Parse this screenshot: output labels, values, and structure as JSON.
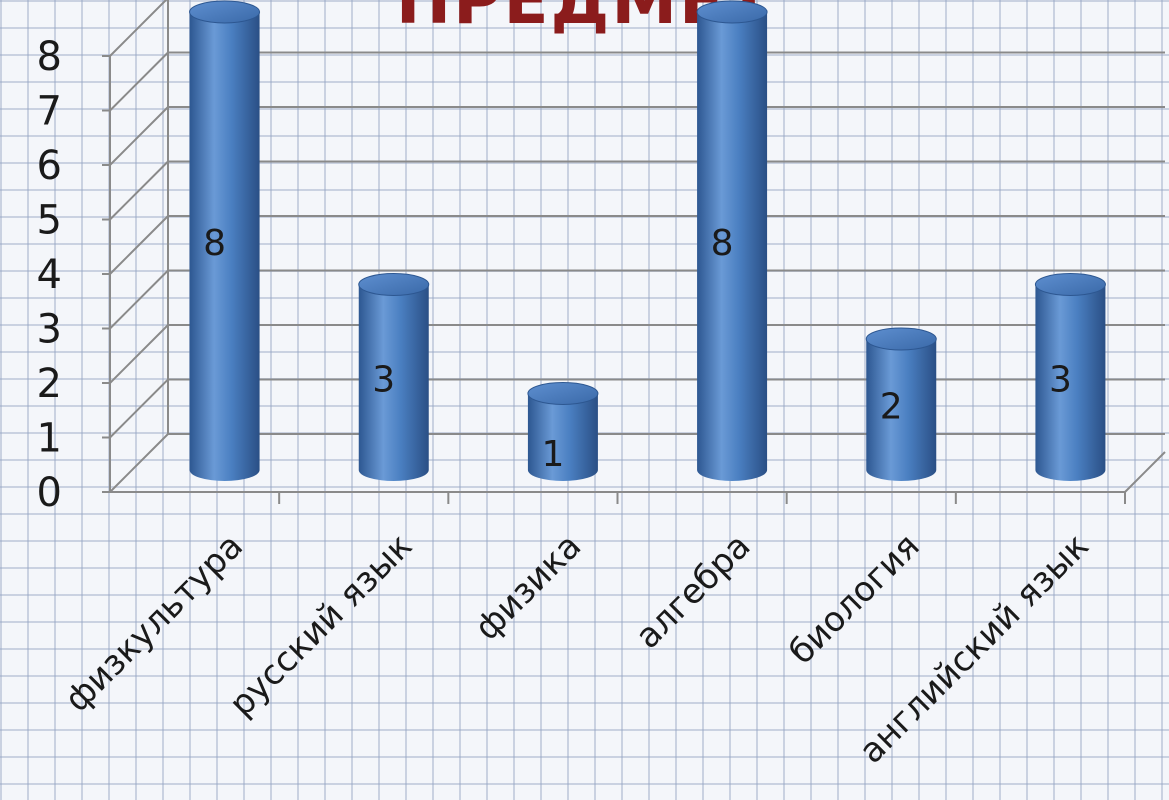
{
  "title": "ПРЕДМЕТ",
  "chart_data": {
    "type": "bar",
    "title": "ПРЕДМЕТ",
    "categories": [
      "физкультура",
      "русский язык",
      "физика",
      "алгебра",
      "биология",
      "английский язык"
    ],
    "values": [
      8,
      3,
      1,
      8,
      2,
      3
    ],
    "data_labels": [
      "8",
      "3",
      "1",
      "8",
      "2",
      "3"
    ],
    "y_ticks": [
      "0",
      "1",
      "2",
      "3",
      "4",
      "5",
      "6",
      "7",
      "8"
    ],
    "ylim": [
      0,
      8
    ],
    "grid": true,
    "legend": "none",
    "style": "3d-cylinder",
    "bar_color": "#4a7fc1",
    "title_color": "#8b1c1c"
  }
}
